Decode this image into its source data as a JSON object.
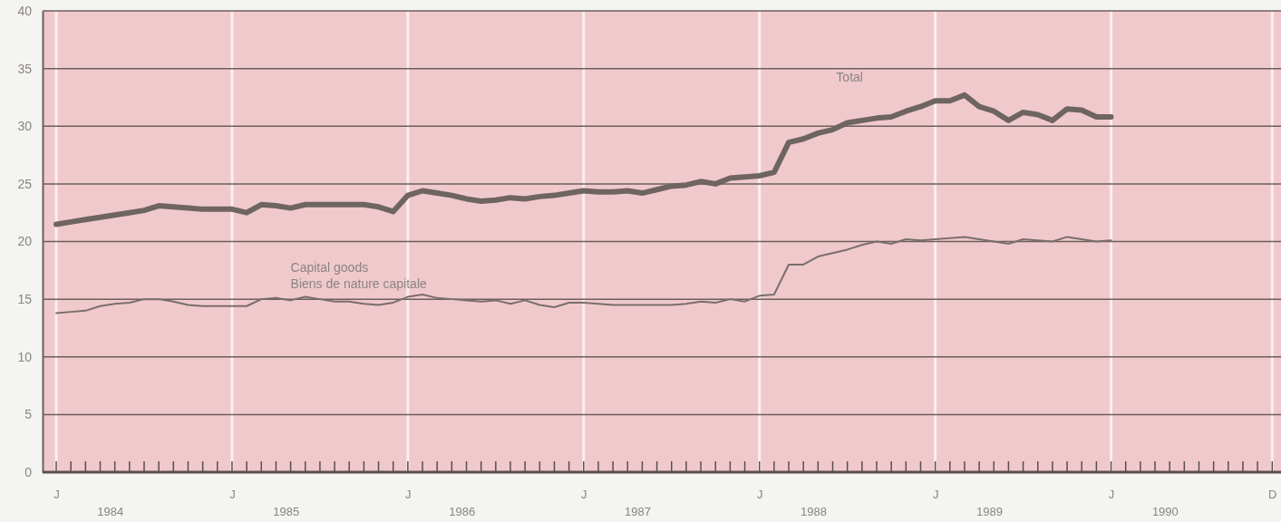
{
  "chart_data": {
    "type": "line",
    "grid": true,
    "legend": false,
    "line_style": "solid",
    "marker": "none",
    "categories": [
      "J",
      null,
      null,
      null,
      null,
      null,
      null,
      null,
      null,
      null,
      null,
      null,
      "J",
      null,
      null,
      null,
      null,
      null,
      null,
      null,
      null,
      null,
      null,
      null,
      "J",
      null,
      null,
      null,
      null,
      null,
      null,
      null,
      null,
      null,
      null,
      null,
      "J",
      null,
      null,
      null,
      null,
      null,
      null,
      null,
      null,
      null,
      null,
      null,
      "J",
      null,
      null,
      null,
      null,
      null,
      null,
      null,
      null,
      null,
      null,
      null,
      "J",
      null,
      null,
      null,
      null,
      null,
      null,
      null,
      null,
      null,
      null,
      null,
      "J",
      null,
      null,
      null,
      null,
      null,
      null,
      null,
      null,
      null,
      null,
      "D"
    ],
    "series": [
      {
        "name": "Total",
        "color": "#6e6462",
        "values": [
          21.5,
          21.7,
          21.9,
          22.1,
          22.3,
          22.5,
          22.7,
          23.1,
          23.0,
          22.9,
          22.8,
          22.8,
          22.8,
          22.5,
          23.2,
          23.1,
          22.9,
          23.2,
          23.2,
          23.2,
          23.2,
          23.2,
          23.0,
          22.6,
          24.0,
          24.4,
          24.2,
          24.0,
          23.7,
          23.5,
          23.6,
          23.8,
          23.7,
          23.9,
          24.0,
          24.2,
          24.4,
          24.3,
          24.3,
          24.4,
          24.2,
          24.5,
          24.8,
          24.9,
          25.2,
          25.0,
          25.5,
          25.6,
          25.7,
          26.0,
          28.6,
          28.9,
          29.4,
          29.7,
          30.3,
          30.5,
          30.7,
          30.8,
          31.3,
          31.7,
          32.2,
          32.2,
          32.7,
          31.7,
          31.3,
          30.5,
          31.2,
          31.0,
          30.5,
          31.5,
          31.4,
          30.8,
          30.8,
          null,
          null,
          null,
          null,
          null,
          null,
          null,
          null,
          null,
          null,
          null
        ]
      },
      {
        "name": "Capital goods\nBiens de nature capitale",
        "color": "#7a6e6c",
        "values": [
          13.8,
          13.9,
          14.0,
          14.4,
          14.6,
          14.7,
          15.0,
          15.0,
          14.8,
          14.5,
          14.4,
          14.4,
          14.4,
          14.4,
          15.0,
          15.1,
          14.9,
          15.2,
          15.0,
          14.8,
          14.8,
          14.6,
          14.5,
          14.7,
          15.2,
          15.4,
          15.1,
          15.0,
          14.9,
          14.8,
          14.9,
          14.6,
          14.9,
          14.5,
          14.3,
          14.7,
          14.7,
          14.6,
          14.5,
          14.5,
          14.5,
          14.5,
          14.5,
          14.6,
          14.8,
          14.7,
          15.0,
          14.8,
          15.3,
          15.4,
          18.0,
          18.0,
          18.7,
          19.0,
          19.3,
          19.7,
          20.0,
          19.8,
          20.2,
          20.1,
          20.2,
          20.3,
          20.4,
          20.2,
          20.0,
          19.8,
          20.2,
          20.1,
          20.0,
          20.4,
          20.2,
          20.0,
          20.1,
          null,
          null,
          null,
          null,
          null,
          null,
          null,
          null,
          null,
          null,
          null
        ]
      }
    ],
    "ylim": [
      0,
      40
    ],
    "yticks": [
      0,
      5,
      10,
      15,
      20,
      25,
      30,
      35,
      40
    ],
    "annotations": [
      "1984",
      "1985",
      "1986",
      "1987",
      "1988",
      "1989",
      "1990"
    ]
  }
}
